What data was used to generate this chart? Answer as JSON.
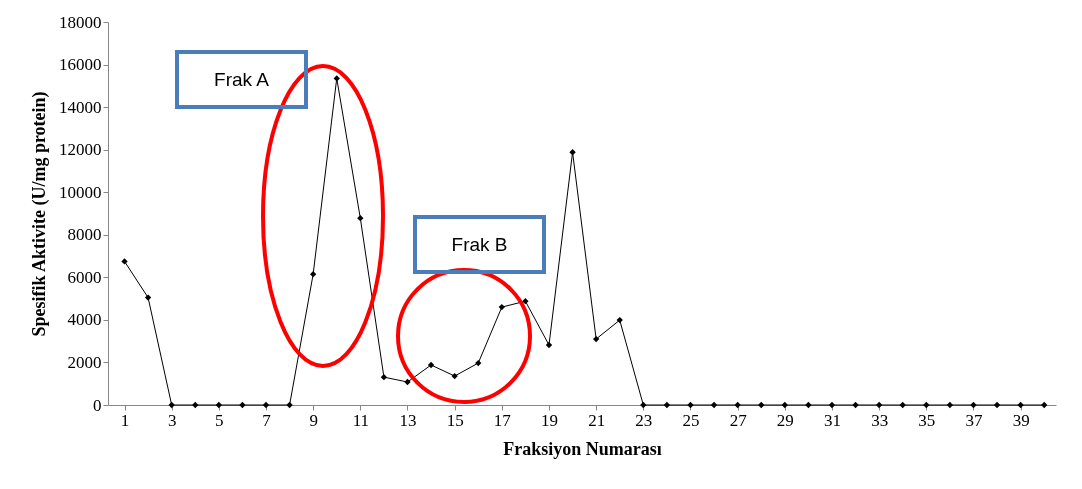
{
  "chart_data": {
    "type": "line",
    "xlabel": "Fraksiyon Numarası",
    "ylabel": "Spesifik Aktivite (U/mg protein)",
    "x": [
      1,
      2,
      3,
      4,
      5,
      6,
      7,
      8,
      9,
      10,
      11,
      12,
      13,
      14,
      15,
      16,
      17,
      18,
      19,
      20,
      21,
      22,
      23,
      24,
      25,
      26,
      27,
      28,
      29,
      30,
      31,
      32,
      33,
      34,
      35,
      36,
      37,
      38,
      39,
      40
    ],
    "series": [
      {
        "color": "#000000",
        "values": [
          6750,
          5050,
          0,
          0,
          0,
          0,
          0,
          0,
          6150,
          15350,
          8780,
          1310,
          1080,
          1880,
          1360,
          1970,
          4600,
          4880,
          2820,
          11880,
          3100,
          3990,
          0,
          0,
          0,
          0,
          0,
          0,
          0,
          0,
          0,
          0,
          0,
          0,
          0,
          0,
          0,
          0,
          0,
          0
        ]
      }
    ],
    "xlim": [
      0.3,
      40.5
    ],
    "xticks": [
      1,
      3,
      5,
      7,
      9,
      11,
      13,
      15,
      17,
      19,
      21,
      23,
      25,
      27,
      29,
      31,
      33,
      35,
      37,
      39
    ],
    "ylim": [
      0,
      18000
    ],
    "yticks": [
      0,
      2000,
      4000,
      6000,
      8000,
      10000,
      12000,
      14000,
      16000,
      18000
    ],
    "marker": "diamond",
    "line_style": "solid",
    "grid": false,
    "annotations": [
      "Frak A",
      "Frak B"
    ]
  }
}
